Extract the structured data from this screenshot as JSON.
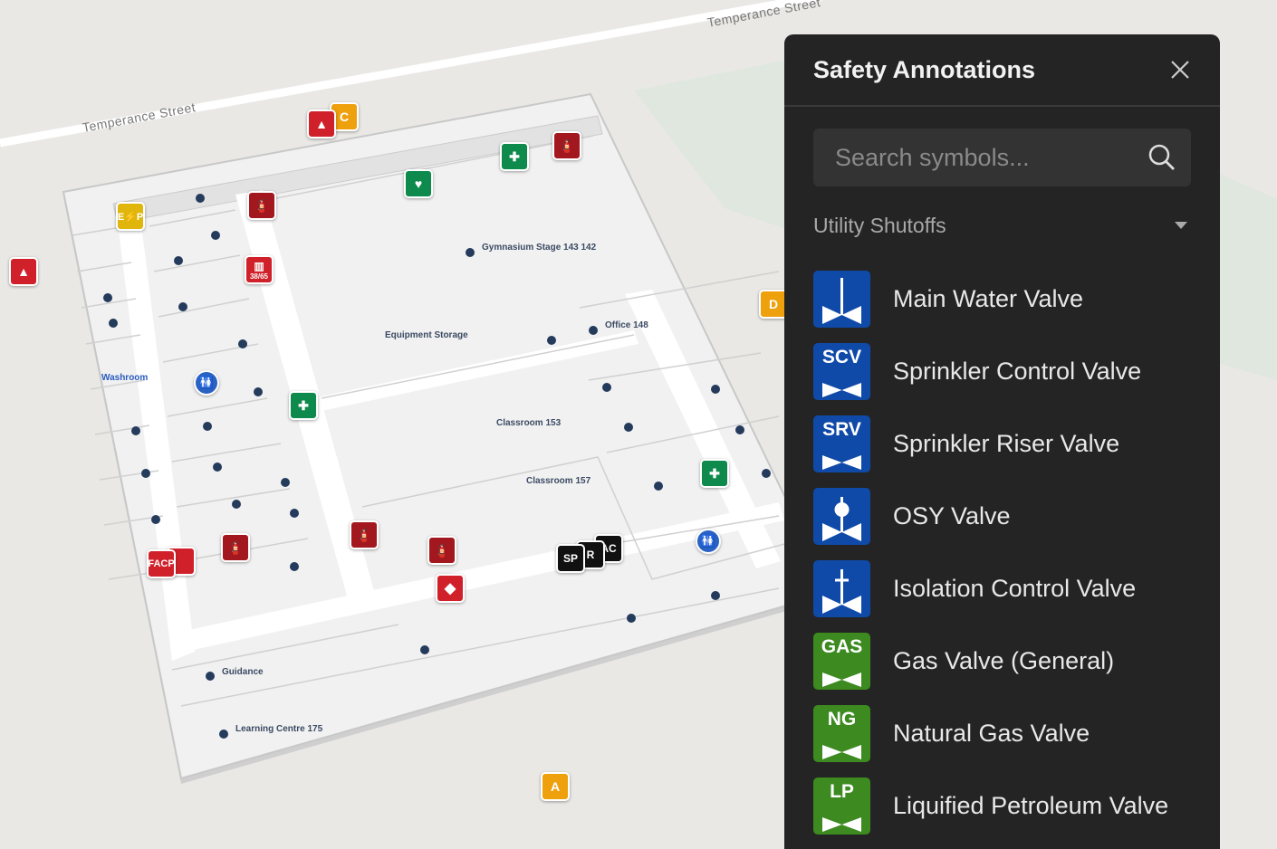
{
  "map": {
    "streets": [
      "Temperance Street",
      "Temperance Street"
    ],
    "rooms": {
      "gym": "Gymnasium Stage 143 142",
      "equipment": "Equipment Storage",
      "office": "Office 148",
      "washroom": "Washroom",
      "c153": "Classroom 153",
      "c157": "Classroom 157",
      "guidance": "Guidance",
      "learning": "Learning Centre 175"
    },
    "markers": {
      "c_top": "C",
      "d_right": "D",
      "a_bottom": "A",
      "facp": "FACP",
      "sp": "SP",
      "r": "R",
      "ac": "AC",
      "ep_e": "E",
      "ep_p": "P",
      "standpipe": "38/65"
    }
  },
  "panel": {
    "title": "Safety Annotations",
    "search": {
      "placeholder": "Search symbols...",
      "value": ""
    },
    "category": "Utility Shutoffs",
    "items": [
      {
        "label": "Main Water Valve",
        "abbr": "",
        "color": "#0f4aa8",
        "icon": "main-water-valve"
      },
      {
        "label": "Sprinkler Control Valve",
        "abbr": "SCV",
        "color": "#0f4aa8",
        "icon": "valve"
      },
      {
        "label": "Sprinkler Riser Valve",
        "abbr": "SRV",
        "color": "#0f4aa8",
        "icon": "valve"
      },
      {
        "label": "OSY Valve",
        "abbr": "",
        "color": "#0f4aa8",
        "icon": "osy-valve"
      },
      {
        "label": "Isolation Control Valve",
        "abbr": "",
        "color": "#0f4aa8",
        "icon": "isolation-valve"
      },
      {
        "label": "Gas Valve (General)",
        "abbr": "GAS",
        "color": "#3c8a20",
        "icon": "valve"
      },
      {
        "label": "Natural Gas Valve",
        "abbr": "NG",
        "color": "#3c8a20",
        "icon": "valve"
      },
      {
        "label": "Liquified Petroleum Valve",
        "abbr": "LP",
        "color": "#3c8a20",
        "icon": "valve"
      }
    ]
  }
}
